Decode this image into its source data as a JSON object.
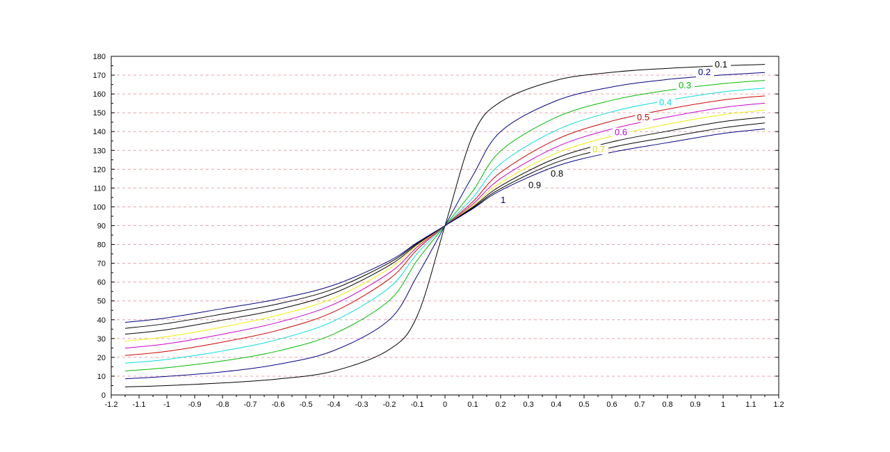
{
  "chart_data": {
    "type": "line",
    "title": "",
    "xlabel": "",
    "ylabel": "",
    "xlim": [
      -1.2,
      1.2
    ],
    "ylim": [
      0,
      180
    ],
    "x_ticks": [
      "-1.2",
      "-1.1",
      "-1",
      "-0.9",
      "-0.8",
      "-0.7",
      "-0.6",
      "-0.5",
      "-0.4",
      "-0.3",
      "-0.2",
      "-0.1",
      "0",
      "0.1",
      "0.2",
      "0.3",
      "0.4",
      "0.5",
      "0.6",
      "0.7",
      "0.8",
      "0.9",
      "1",
      "1.1",
      "1.2"
    ],
    "y_ticks": [
      "0",
      "10",
      "20",
      "30",
      "40",
      "50",
      "60",
      "70",
      "80",
      "90",
      "100",
      "110",
      "120",
      "130",
      "140",
      "150",
      "160",
      "170",
      "180"
    ],
    "grid": {
      "horizontal": true,
      "vertical": false,
      "style": "dashed",
      "color": "#e8a0a8"
    },
    "legend": "none",
    "x": [
      -1.15,
      -1.0,
      -0.8,
      -0.6,
      -0.4,
      -0.2,
      -0.1,
      0,
      0.1,
      0.2,
      0.4,
      0.6,
      0.8,
      1.0,
      1.15
    ],
    "series": [
      {
        "name": "0.1",
        "color": "#000000",
        "label_at": [
          0.97,
          174
        ],
        "values": [
          4.3,
          5.0,
          6.4,
          8.5,
          12.7,
          24.2,
          42.0,
          90,
          138.0,
          155.8,
          167.3,
          171.5,
          173.6,
          175.0,
          175.7
        ]
      },
      {
        "name": "0.2",
        "color": "#000080",
        "label_at": [
          0.91,
          170
        ],
        "values": [
          8.6,
          9.9,
          12.3,
          16.3,
          23.6,
          40.0,
          63.4,
          90,
          116.6,
          140.0,
          156.4,
          163.7,
          167.7,
          170.1,
          171.4
        ]
      },
      {
        "name": "0.3",
        "color": "#00bb00",
        "label_at": [
          0.84,
          163
        ],
        "values": [
          12.8,
          14.5,
          18.1,
          23.4,
          32.4,
          50.3,
          71.6,
          90,
          108.4,
          129.7,
          147.6,
          156.6,
          161.9,
          165.5,
          167.2
        ]
      },
      {
        "name": "0.4",
        "color": "#00dddd",
        "label_at": [
          0.77,
          154
        ],
        "values": [
          16.9,
          18.9,
          23.4,
          29.5,
          39.3,
          57.1,
          75.2,
          90,
          104.8,
          122.9,
          140.7,
          150.5,
          156.6,
          161.1,
          163.1
        ]
      },
      {
        "name": "0.5",
        "color": "#cc0000",
        "label_at": [
          0.69,
          146
        ],
        "values": [
          21.0,
          23.2,
          28.1,
          34.4,
          44.2,
          61.7,
          77.3,
          90,
          102.7,
          118.3,
          135.8,
          145.6,
          151.9,
          156.8,
          159.0
        ]
      },
      {
        "name": "0.6",
        "color": "#cc00cc",
        "label_at": [
          0.61,
          138
        ],
        "values": [
          24.9,
          27.2,
          32.3,
          38.6,
          48.2,
          64.9,
          78.6,
          90,
          101.4,
          115.1,
          131.8,
          141.4,
          147.7,
          152.8,
          155.1
        ]
      },
      {
        "name": "0.7",
        "color": "#eeee00",
        "label_at": [
          0.53,
          129
        ],
        "values": [
          28.6,
          31.0,
          36.1,
          42.4,
          51.5,
          67.2,
          79.4,
          90,
          100.6,
          112.8,
          128.5,
          137.6,
          143.9,
          149.0,
          151.4
        ]
      },
      {
        "name": "0.8",
        "color": "#000000",
        "label_at": [
          0.38,
          116
        ],
        "values": [
          32.3,
          34.7,
          39.8,
          45.5,
          54.1,
          68.9,
          80.1,
          90,
          99.9,
          111.1,
          125.9,
          134.5,
          140.2,
          145.3,
          147.7
        ]
      },
      {
        "name": "0.9",
        "color": "#000000",
        "label_at": [
          0.3,
          110
        ],
        "values": [
          35.4,
          38.0,
          43.0,
          48.4,
          56.4,
          70.3,
          80.6,
          90,
          99.4,
          109.7,
          123.6,
          131.6,
          137.0,
          142.0,
          144.6
        ]
      },
      {
        "name": "1",
        "color": "#000080",
        "label_at": [
          0.2,
          102
        ],
        "values": [
          38.6,
          41.0,
          45.9,
          51.0,
          58.4,
          71.3,
          81.0,
          90,
          99.0,
          108.7,
          121.6,
          129.0,
          134.1,
          139.0,
          141.4
        ]
      }
    ]
  }
}
